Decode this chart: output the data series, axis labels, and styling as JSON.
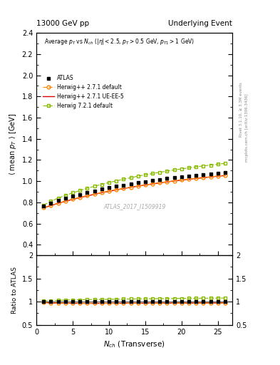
{
  "title_left": "13000 GeV pp",
  "title_right": "Underlying Event",
  "right_label_top": "Rivet 3.1.10, ≥ 3.3M events",
  "right_label_bottom": "mcplots.cern.ch [arXiv:1306.3436]",
  "watermark": "ATLAS_2017_I1509919",
  "plot_title": "Average $p_T$ vs $N_{ch}$ ($|\\eta| < 2.5$, $p_T > 0.5$ GeV, $p_{T1} > 1$ GeV)",
  "xlabel": "$N_{ch}$ (Transverse)",
  "ylabel_main": "$\\langle$ mean $p_T$ $\\rangle$ [GeV]",
  "ylabel_ratio": "Ratio to ATLAS",
  "ylim_main": [
    0.3,
    2.4
  ],
  "ylim_ratio": [
    0.5,
    2.0
  ],
  "xlim": [
    0,
    27
  ],
  "yticks_main": [
    0.4,
    0.6,
    0.8,
    1.0,
    1.2,
    1.4,
    1.6,
    1.8,
    2.0,
    2.2,
    2.4
  ],
  "yticks_ratio": [
    0.5,
    1.0,
    1.5,
    2.0
  ],
  "atlas_x": [
    1,
    2,
    3,
    4,
    5,
    6,
    7,
    8,
    9,
    10,
    11,
    12,
    13,
    14,
    15,
    16,
    17,
    18,
    19,
    20,
    21,
    22,
    23,
    24,
    25,
    26
  ],
  "atlas_y": [
    0.762,
    0.792,
    0.817,
    0.838,
    0.858,
    0.876,
    0.893,
    0.909,
    0.924,
    0.938,
    0.951,
    0.963,
    0.975,
    0.986,
    0.997,
    1.007,
    1.016,
    1.025,
    1.034,
    1.042,
    1.05,
    1.057,
    1.064,
    1.071,
    1.077,
    1.083
  ],
  "herwig271_default_x": [
    1,
    2,
    3,
    4,
    5,
    6,
    7,
    8,
    9,
    10,
    11,
    12,
    13,
    14,
    15,
    16,
    17,
    18,
    19,
    20,
    21,
    22,
    23,
    24,
    25,
    26
  ],
  "herwig271_default_y": [
    0.75,
    0.772,
    0.793,
    0.812,
    0.83,
    0.847,
    0.863,
    0.878,
    0.892,
    0.906,
    0.919,
    0.931,
    0.943,
    0.954,
    0.965,
    0.975,
    0.985,
    0.994,
    1.003,
    1.011,
    1.019,
    1.027,
    1.034,
    1.041,
    1.048,
    1.054
  ],
  "herwig271_ueee5_x": [
    1,
    2,
    3,
    4,
    5,
    6,
    7,
    8,
    9,
    10,
    11,
    12,
    13,
    14,
    15,
    16,
    17,
    18,
    19,
    20,
    21,
    22,
    23,
    24,
    25,
    26
  ],
  "herwig271_ueee5_y": [
    0.748,
    0.77,
    0.791,
    0.81,
    0.828,
    0.845,
    0.861,
    0.876,
    0.891,
    0.905,
    0.918,
    0.93,
    0.942,
    0.953,
    0.964,
    0.974,
    0.984,
    0.993,
    1.002,
    1.01,
    1.018,
    1.026,
    1.033,
    1.04,
    1.047,
    1.053
  ],
  "herwig721_default_x": [
    1,
    2,
    3,
    4,
    5,
    6,
    7,
    8,
    9,
    10,
    11,
    12,
    13,
    14,
    15,
    16,
    17,
    18,
    19,
    20,
    21,
    22,
    23,
    24,
    25,
    26
  ],
  "herwig721_default_y": [
    0.775,
    0.81,
    0.84,
    0.866,
    0.89,
    0.912,
    0.933,
    0.952,
    0.97,
    0.987,
    1.003,
    1.018,
    1.033,
    1.047,
    1.06,
    1.072,
    1.084,
    1.095,
    1.106,
    1.116,
    1.126,
    1.135,
    1.144,
    1.152,
    1.16,
    1.168
  ],
  "atlas_color": "#000000",
  "herwig271_default_color": "#ff8800",
  "herwig271_ueee5_color": "#dd0000",
  "herwig721_default_color": "#88bb00",
  "legend_labels": [
    "ATLAS",
    "Herwig++ 2.7.1 default",
    "Herwig++ 2.7.1 UE-EE-5",
    "Herwig 7.2.1 default"
  ]
}
